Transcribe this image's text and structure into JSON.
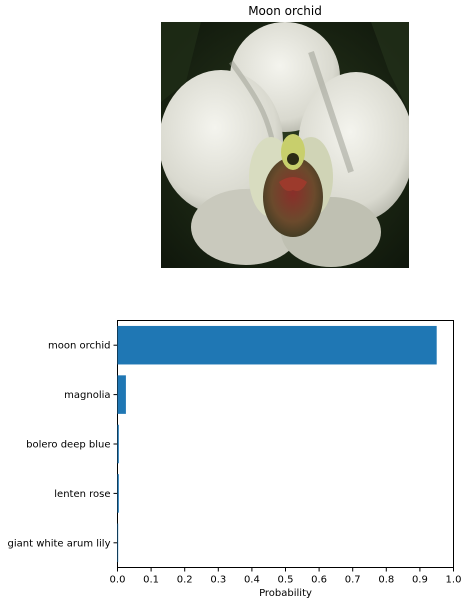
{
  "image_panel": {
    "title": "Moon orchid",
    "photo_subject": "white moon orchid flower close-up"
  },
  "chart_data": {
    "type": "bar",
    "orientation": "horizontal",
    "categories": [
      "moon orchid",
      "magnolia",
      "bolero deep blue",
      "lenten rose",
      "giant white arum lily"
    ],
    "values": [
      0.95,
      0.025,
      0.004,
      0.004,
      0.002
    ],
    "xlabel": "Probability",
    "ylabel": "",
    "xlim": [
      0,
      1.0
    ],
    "xticks": [
      "0.0",
      "0.1",
      "0.2",
      "0.3",
      "0.4",
      "0.5",
      "0.6",
      "0.7",
      "0.8",
      "0.9",
      "1.0"
    ],
    "grid": false,
    "bar_color": "#1f77b4"
  }
}
